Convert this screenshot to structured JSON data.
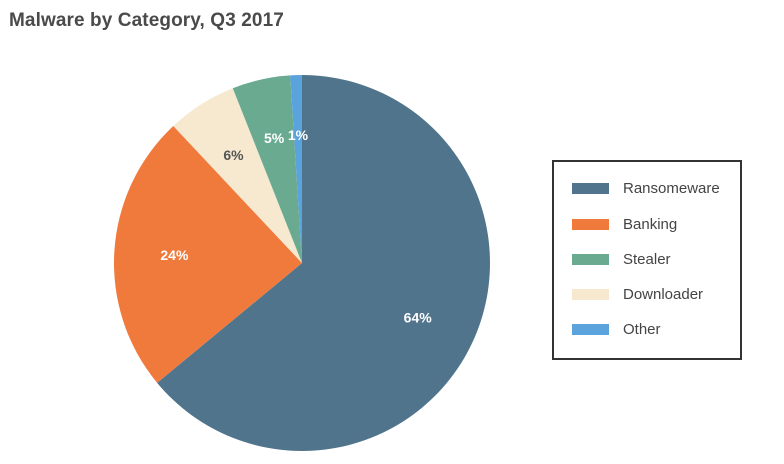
{
  "chart_data": {
    "type": "pie",
    "title": "Malware by Category, Q3 2017",
    "categories": [
      "Ransomeware",
      "Banking",
      "Stealer",
      "Downloader",
      "Other"
    ],
    "values": [
      64,
      24,
      5,
      6,
      1
    ],
    "labels": [
      "64%",
      "24%",
      "5%",
      "6%",
      "1%"
    ],
    "colors": [
      "#50748c",
      "#f07a3c",
      "#6aaa90",
      "#f7e8d0",
      "#5aa3dc"
    ],
    "label_colors": [
      "#ffffff",
      "#ffffff",
      "#ffffff",
      "#555555",
      "#ffffff"
    ],
    "slice_order": [
      "Ransomeware",
      "Banking",
      "Downloader",
      "Stealer",
      "Other"
    ],
    "start": "top, clockwise",
    "legend_position": "right"
  }
}
